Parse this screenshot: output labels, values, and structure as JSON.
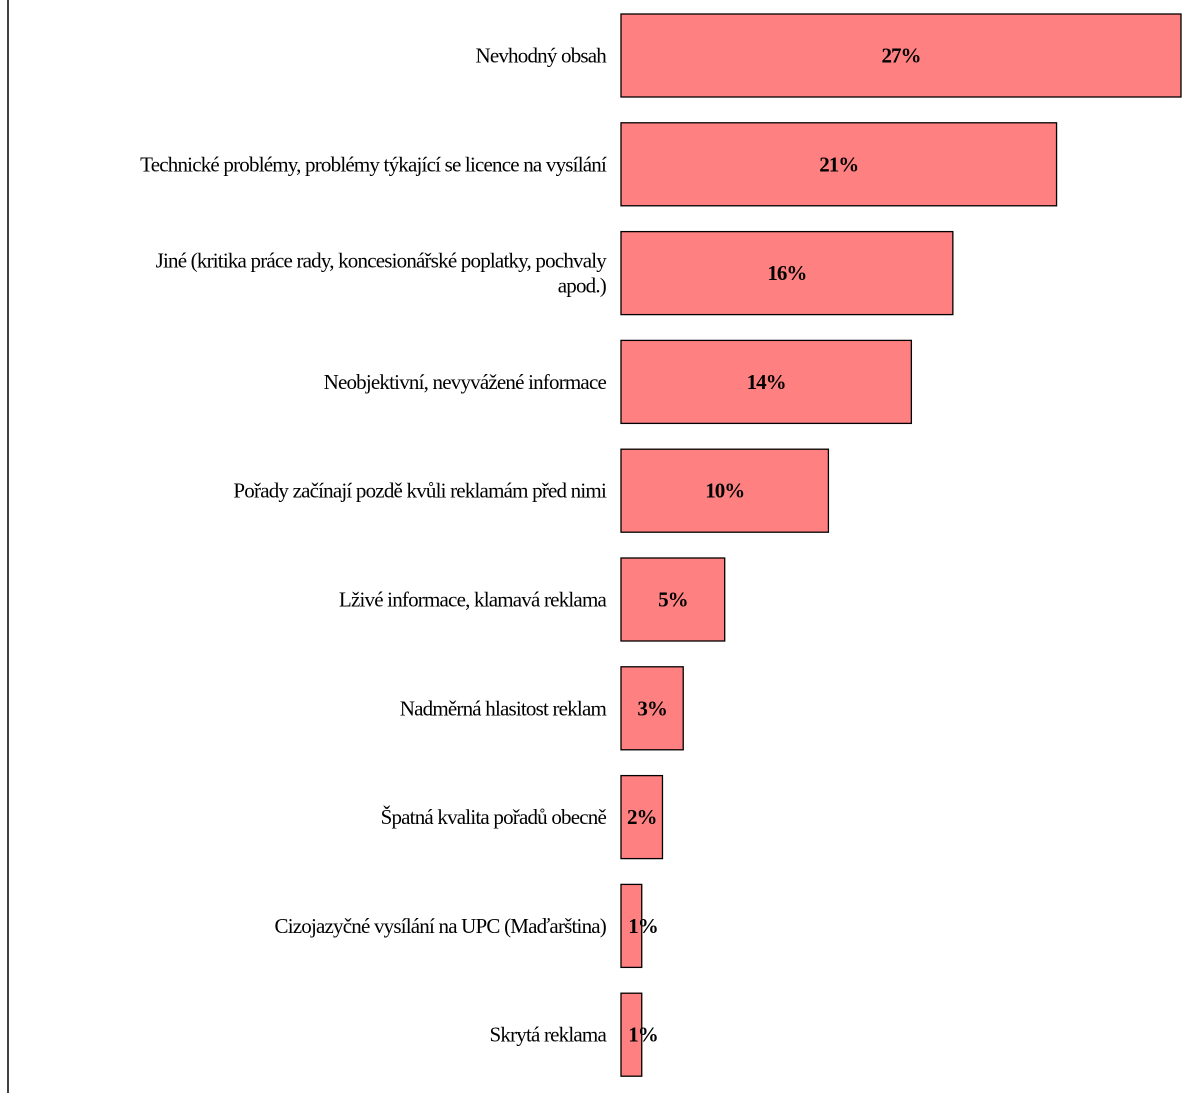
{
  "chart_data": {
    "type": "bar",
    "orientation": "horizontal",
    "categories": [
      "Nevhodný obsah",
      "Technické problémy, problémy týkající se licence na vysílání",
      "Jiné (kritika práce rady, koncesionářské poplatky, pochvaly apod.)",
      "Neobjektivní, nevyvážené informace",
      "Pořady začínají pozdě kvůli reklamám před nimi",
      "Lživé informace, klamavá reklama",
      "Nadměrná hlasitost reklam",
      "Špatná kvalita pořadů obecně",
      "Cizojazyčné vysílání na UPC (Maďarština)",
      "Skrytá reklama"
    ],
    "category_lines": [
      [
        "Nevhodný obsah"
      ],
      [
        "Technické problémy, problémy týkající se licence na vysílání"
      ],
      [
        "Jiné (kritika práce rady, koncesionářské poplatky, pochvaly",
        "apod.)"
      ],
      [
        "Neobjektivní, nevyvážené informace"
      ],
      [
        "Pořady začínají pozdě kvůli reklamám před nimi"
      ],
      [
        "Lživé informace, klamavá reklama"
      ],
      [
        "Nadměrná hlasitost reklam"
      ],
      [
        "Špatná kvalita pořadů obecně"
      ],
      [
        "Cizojazyčné vysílání na UPC (Maďarština)"
      ],
      [
        "Skrytá reklama"
      ]
    ],
    "values": [
      27,
      21,
      16,
      14,
      10,
      5,
      3,
      2,
      1,
      1
    ],
    "value_labels": [
      "27%",
      "21%",
      "16%",
      "14%",
      "10%",
      "5%",
      "3%",
      "2%",
      "1%",
      "1%"
    ],
    "xlim": [
      0,
      27
    ],
    "grid": false,
    "legend": "none",
    "colors": {
      "bar_fill": "#ff8080",
      "bar_stroke": "#000000",
      "axis": "#000000"
    }
  }
}
